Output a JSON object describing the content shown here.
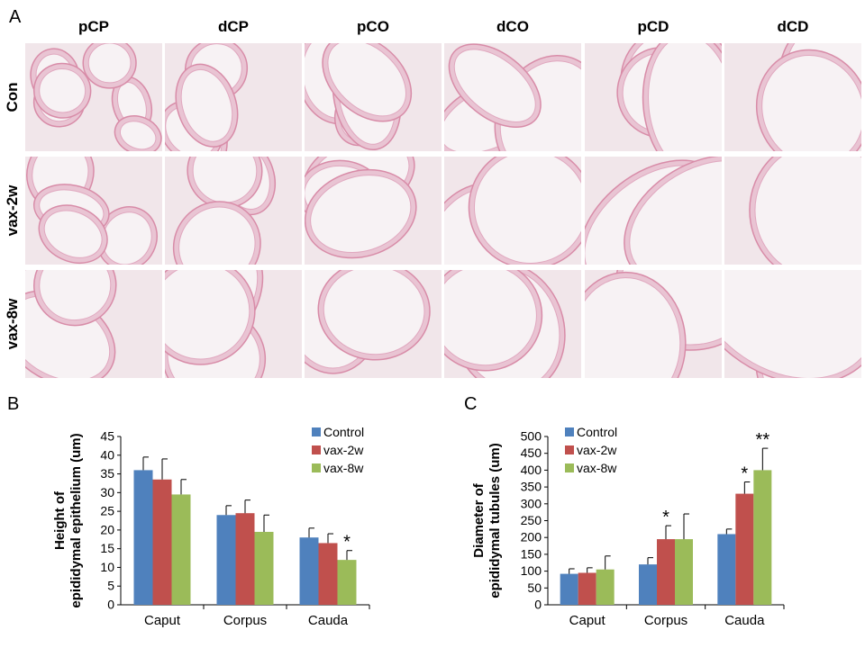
{
  "figure": {
    "panel_a_label": "A",
    "panel_b_label": "B",
    "panel_c_label": "C",
    "columns": [
      "pCP",
      "dCP",
      "pCO",
      "dCO",
      "pCD",
      "dCD"
    ],
    "rows": [
      "Con",
      "vax-2w",
      "vax-8w"
    ],
    "colors": {
      "control": "#4F81BD",
      "vax2w": "#C0504D",
      "vax8w": "#9BBB59",
      "tissue_bg": "#F1E6EA",
      "tissue_line": "#D88CA8",
      "lumen": "#F7F2F4"
    }
  },
  "chart_data": [
    {
      "type": "bar",
      "panel": "B",
      "title": "",
      "ylabel_line1": "Height of",
      "ylabel_line2": "epididymal epithelium (um)",
      "categories": [
        "Caput",
        "Corpus",
        "Cauda"
      ],
      "ylim": [
        0,
        45
      ],
      "yticks": [
        0,
        5,
        10,
        15,
        20,
        25,
        30,
        35,
        40,
        45
      ],
      "series": [
        {
          "name": "Control",
          "values": [
            36,
            24,
            18
          ],
          "errors": [
            3.5,
            2.5,
            2.5
          ]
        },
        {
          "name": "vax-2w",
          "values": [
            33.5,
            24.5,
            16.5
          ],
          "errors": [
            5.5,
            3.5,
            2.5
          ]
        },
        {
          "name": "vax-8w",
          "values": [
            29.5,
            19.5,
            12
          ],
          "errors": [
            4,
            4.5,
            2.5
          ]
        }
      ],
      "annotations": [
        {
          "category": "Cauda",
          "series": "vax-8w",
          "text": "*"
        }
      ],
      "legend": "top-right"
    },
    {
      "type": "bar",
      "panel": "C",
      "title": "",
      "ylabel_line1": "Diameter of",
      "ylabel_line2": "epididymal tubules (um)",
      "categories": [
        "Caput",
        "Corpus",
        "Cauda"
      ],
      "ylim": [
        0,
        500
      ],
      "yticks": [
        0,
        50,
        100,
        150,
        200,
        250,
        300,
        350,
        400,
        450,
        500
      ],
      "series": [
        {
          "name": "Control",
          "values": [
            92,
            120,
            210
          ],
          "errors": [
            15,
            20,
            15
          ]
        },
        {
          "name": "vax-2w",
          "values": [
            95,
            195,
            330
          ],
          "errors": [
            15,
            40,
            35
          ]
        },
        {
          "name": "vax-8w",
          "values": [
            105,
            195,
            400
          ],
          "errors": [
            40,
            75,
            65
          ]
        }
      ],
      "annotations": [
        {
          "category": "Corpus",
          "series": "vax-2w",
          "text": "*"
        },
        {
          "category": "Cauda",
          "series": "vax-2w",
          "text": "*"
        },
        {
          "category": "Cauda",
          "series": "vax-8w",
          "text": "**"
        }
      ],
      "legend": "top-left"
    }
  ]
}
